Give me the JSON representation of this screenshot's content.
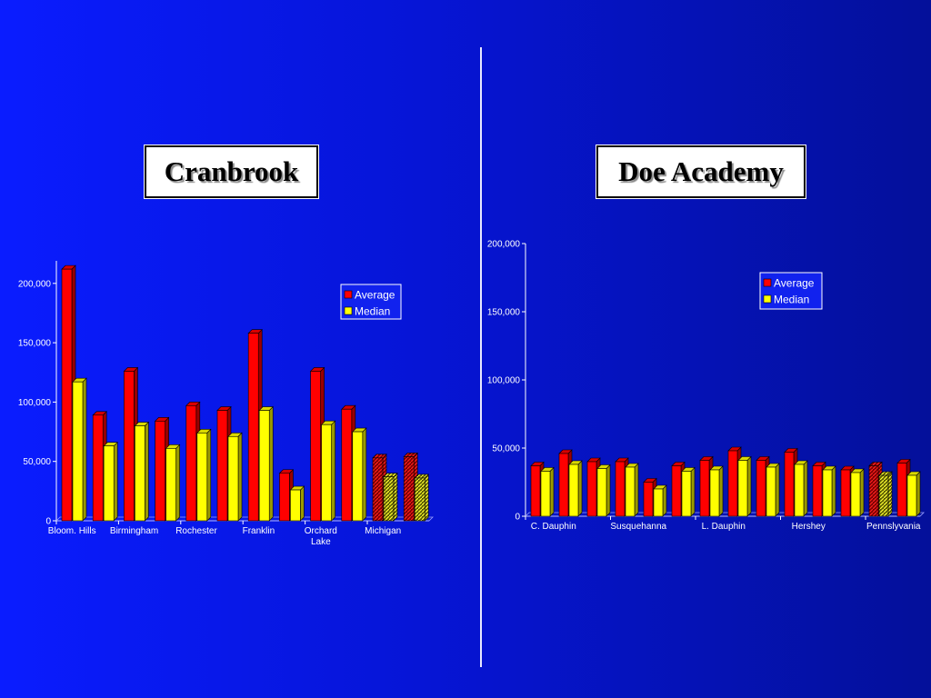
{
  "slide": {
    "left_title": "Cranbrook",
    "right_title": "Doe Academy"
  },
  "colors": {
    "average": "#ff0000",
    "median": "#ffff00",
    "axis": "#ffffff"
  },
  "chart_data": [
    {
      "type": "bar",
      "title": "Cranbrook",
      "categories": [
        "Bloom. Hills",
        "Birmingham",
        "Rochester",
        "Franklin",
        "Orchard Lake",
        "Michigan"
      ],
      "tick_labels": [
        [
          "Bloom. Hills"
        ],
        [
          "Birmingham"
        ],
        [
          "Rochester"
        ],
        [
          "Franklin"
        ],
        [
          "Orchard",
          "Lake"
        ],
        [
          "Michigan"
        ]
      ],
      "groups": [
        {
          "average": 212000,
          "median": 117000
        },
        {
          "average": 89000,
          "median": 63000
        },
        {
          "average": 126000,
          "median": 80000
        },
        {
          "average": 84000,
          "median": 61000
        },
        {
          "average": 97000,
          "median": 74000
        },
        {
          "average": 93000,
          "median": 71000
        },
        {
          "average": 158000,
          "median": 93000
        },
        {
          "average": 40000,
          "median": 26000
        },
        {
          "average": 126000,
          "median": 81000
        },
        {
          "average": 94000,
          "median": 75000
        },
        {
          "average": 53000,
          "median": 37000,
          "hatched": true
        },
        {
          "average": 54000,
          "median": 36000,
          "hatched": true
        }
      ],
      "series": [
        {
          "name": "Average"
        },
        {
          "name": "Median"
        }
      ],
      "yticks": [
        "0",
        "50,000",
        "100,000",
        "150,000",
        "200,000"
      ],
      "ylim": [
        0,
        220000
      ],
      "legend": "top-right"
    },
    {
      "type": "bar",
      "title": "Doe Academy",
      "categories": [
        "C. Dauphin",
        "Susquehanna",
        "L. Dauphin",
        "Hershey",
        "Pennslyvania"
      ],
      "tick_labels": [
        [
          "C. Dauphin"
        ],
        [
          "Susquehanna"
        ],
        [
          "L. Dauphin"
        ],
        [
          "Hershey"
        ],
        [
          "Pennslyvania"
        ]
      ],
      "groups": [
        {
          "average": 37000,
          "median": 33000
        },
        {
          "average": 46000,
          "median": 38000
        },
        {
          "average": 40000,
          "median": 35000
        },
        {
          "average": 40000,
          "median": 36000
        },
        {
          "average": 25000,
          "median": 20000
        },
        {
          "average": 37000,
          "median": 33000
        },
        {
          "average": 41000,
          "median": 34000
        },
        {
          "average": 48000,
          "median": 41000
        },
        {
          "average": 41000,
          "median": 36000
        },
        {
          "average": 47000,
          "median": 38000
        },
        {
          "average": 37000,
          "median": 34000
        },
        {
          "average": 34000,
          "median": 32000
        },
        {
          "average": 37000,
          "median": 30000,
          "hatched": true
        },
        {
          "average": 39000,
          "median": 30000
        }
      ],
      "series": [
        {
          "name": "Average"
        },
        {
          "name": "Median"
        }
      ],
      "yticks": [
        "0",
        "50,000",
        "100,000",
        "150,000",
        "200,000"
      ],
      "ylim": [
        0,
        200000
      ],
      "legend": "top-right"
    }
  ]
}
